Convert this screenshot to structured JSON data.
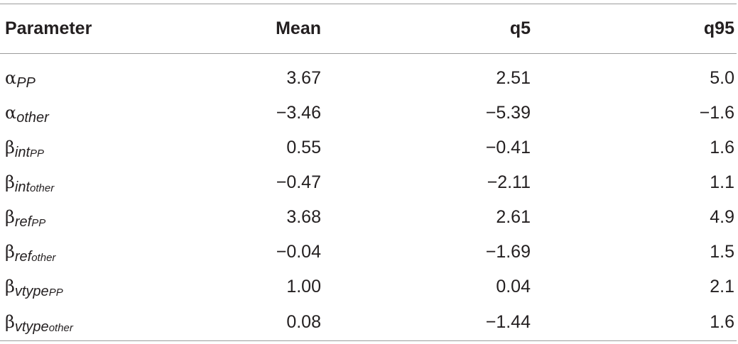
{
  "table": {
    "headers": {
      "parameter": "Parameter",
      "mean": "Mean",
      "q5": "q5",
      "q95": "q95"
    },
    "rows": [
      {
        "symbol": "α",
        "sub": "PP",
        "subsub": "",
        "mean": "3.67",
        "q5": "2.51",
        "q95": "5.0"
      },
      {
        "symbol": "α",
        "sub": "other",
        "subsub": "",
        "mean": "−3.46",
        "q5": "−5.39",
        "q95": "−1.6"
      },
      {
        "symbol": "β",
        "sub": "int",
        "subsub": "PP",
        "mean": "0.55",
        "q5": "−0.41",
        "q95": "1.6"
      },
      {
        "symbol": "β",
        "sub": "int",
        "subsub": "other",
        "mean": "−0.47",
        "q5": "−2.11",
        "q95": "1.1"
      },
      {
        "symbol": "β",
        "sub": "ref",
        "subsub": "PP",
        "mean": "3.68",
        "q5": "2.61",
        "q95": "4.9"
      },
      {
        "symbol": "β",
        "sub": "ref",
        "subsub": "other",
        "mean": "−0.04",
        "q5": "−1.69",
        "q95": "1.5"
      },
      {
        "symbol": "β",
        "sub": "vtype",
        "subsub": "PP",
        "mean": "1.00",
        "q5": "0.04",
        "q95": "2.1"
      },
      {
        "symbol": "β",
        "sub": "vtype",
        "subsub": "other",
        "mean": "0.08",
        "q5": "−1.44",
        "q95": "1.6"
      }
    ]
  }
}
